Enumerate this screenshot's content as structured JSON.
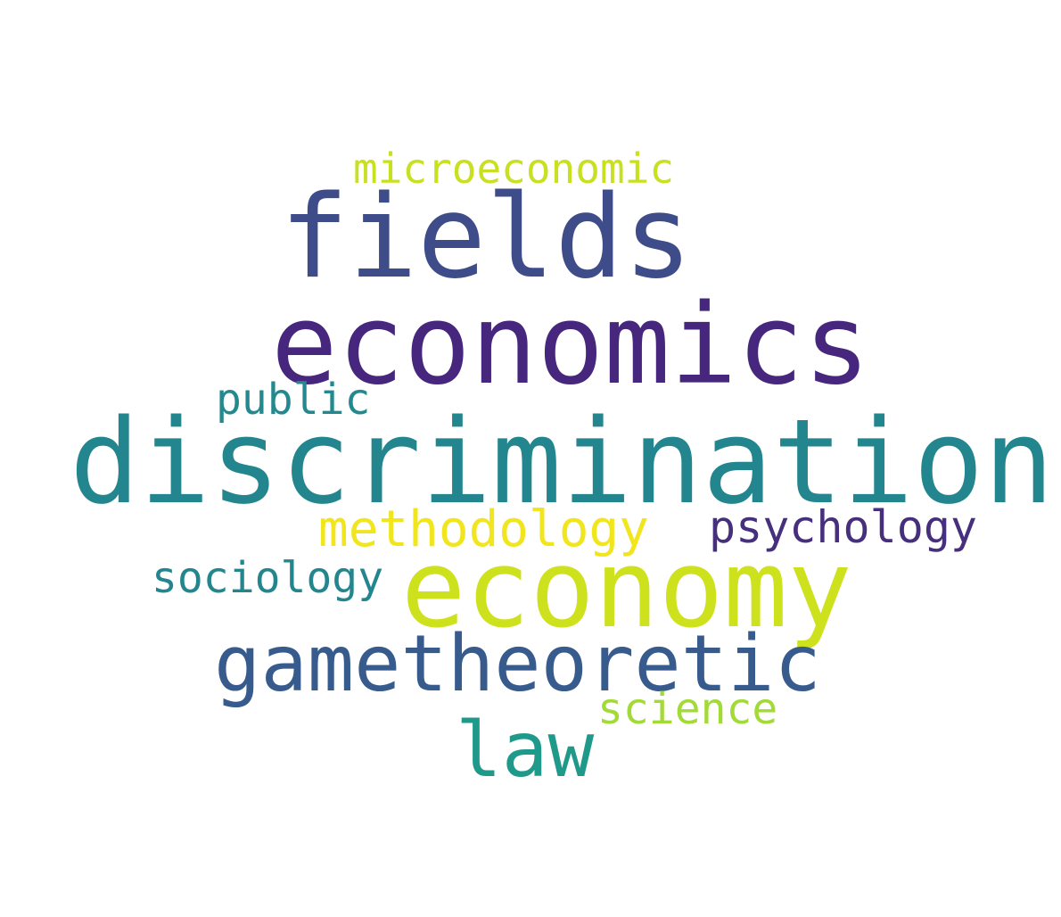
{
  "background_color": "#ffffff",
  "words": [
    {
      "id": "microeconomic",
      "text": "microeconomic",
      "color": "#c8e020"
    },
    {
      "id": "fields",
      "text": "fields",
      "color": "#3e4c8a"
    },
    {
      "id": "economics",
      "text": "economics",
      "color": "#46277d"
    },
    {
      "id": "public",
      "text": "public",
      "color": "#23898e"
    },
    {
      "id": "discrimination",
      "text": "discrimination",
      "color": "#23868e"
    },
    {
      "id": "methodology",
      "text": "methodology",
      "color": "#f1e51d"
    },
    {
      "id": "psychology",
      "text": "psychology",
      "color": "#46307e"
    },
    {
      "id": "sociology",
      "text": "sociology",
      "color": "#23858e"
    },
    {
      "id": "economy",
      "text": "economy",
      "color": "#cde11d"
    },
    {
      "id": "gametheoretic",
      "text": "gametheoretic",
      "color": "#375b8d"
    },
    {
      "id": "science",
      "text": "science",
      "color": "#a2da37"
    },
    {
      "id": "law",
      "text": "law",
      "color": "#1f9a8a"
    }
  ]
}
